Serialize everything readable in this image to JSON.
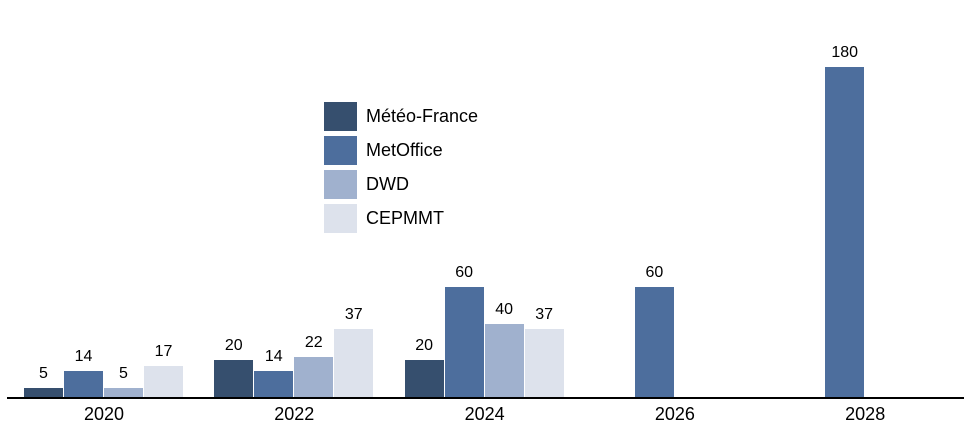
{
  "chart_data": {
    "type": "bar",
    "title": "",
    "xlabel": "",
    "ylabel": "",
    "categories": [
      "2020",
      "2022",
      "2024",
      "2026",
      "2028"
    ],
    "series": [
      {
        "name": "Météo-France",
        "color": "#364f6e",
        "values": [
          5,
          20,
          20,
          0,
          0
        ]
      },
      {
        "name": "MetOffice",
        "color": "#4d6e9d",
        "values": [
          14,
          14,
          60,
          60,
          180
        ]
      },
      {
        "name": "DWD",
        "color": "#a0b1ce",
        "values": [
          5,
          22,
          40,
          0,
          0
        ]
      },
      {
        "name": "CEPMMT",
        "color": "#dde2ec",
        "values": [
          17,
          37,
          37,
          0,
          0
        ]
      }
    ],
    "bar_value_labels": [
      [
        "5",
        "20",
        "20",
        "",
        ""
      ],
      [
        "14",
        "14",
        "60",
        "60",
        "180"
      ],
      [
        "5",
        "22",
        "40",
        "",
        ""
      ],
      [
        "17",
        "37",
        "37",
        "",
        ""
      ]
    ],
    "ylim": [
      0,
      200
    ],
    "grid": false,
    "legend_position": "inside-upper-left",
    "axis_color": "#000000",
    "text_color": "#000000"
  }
}
